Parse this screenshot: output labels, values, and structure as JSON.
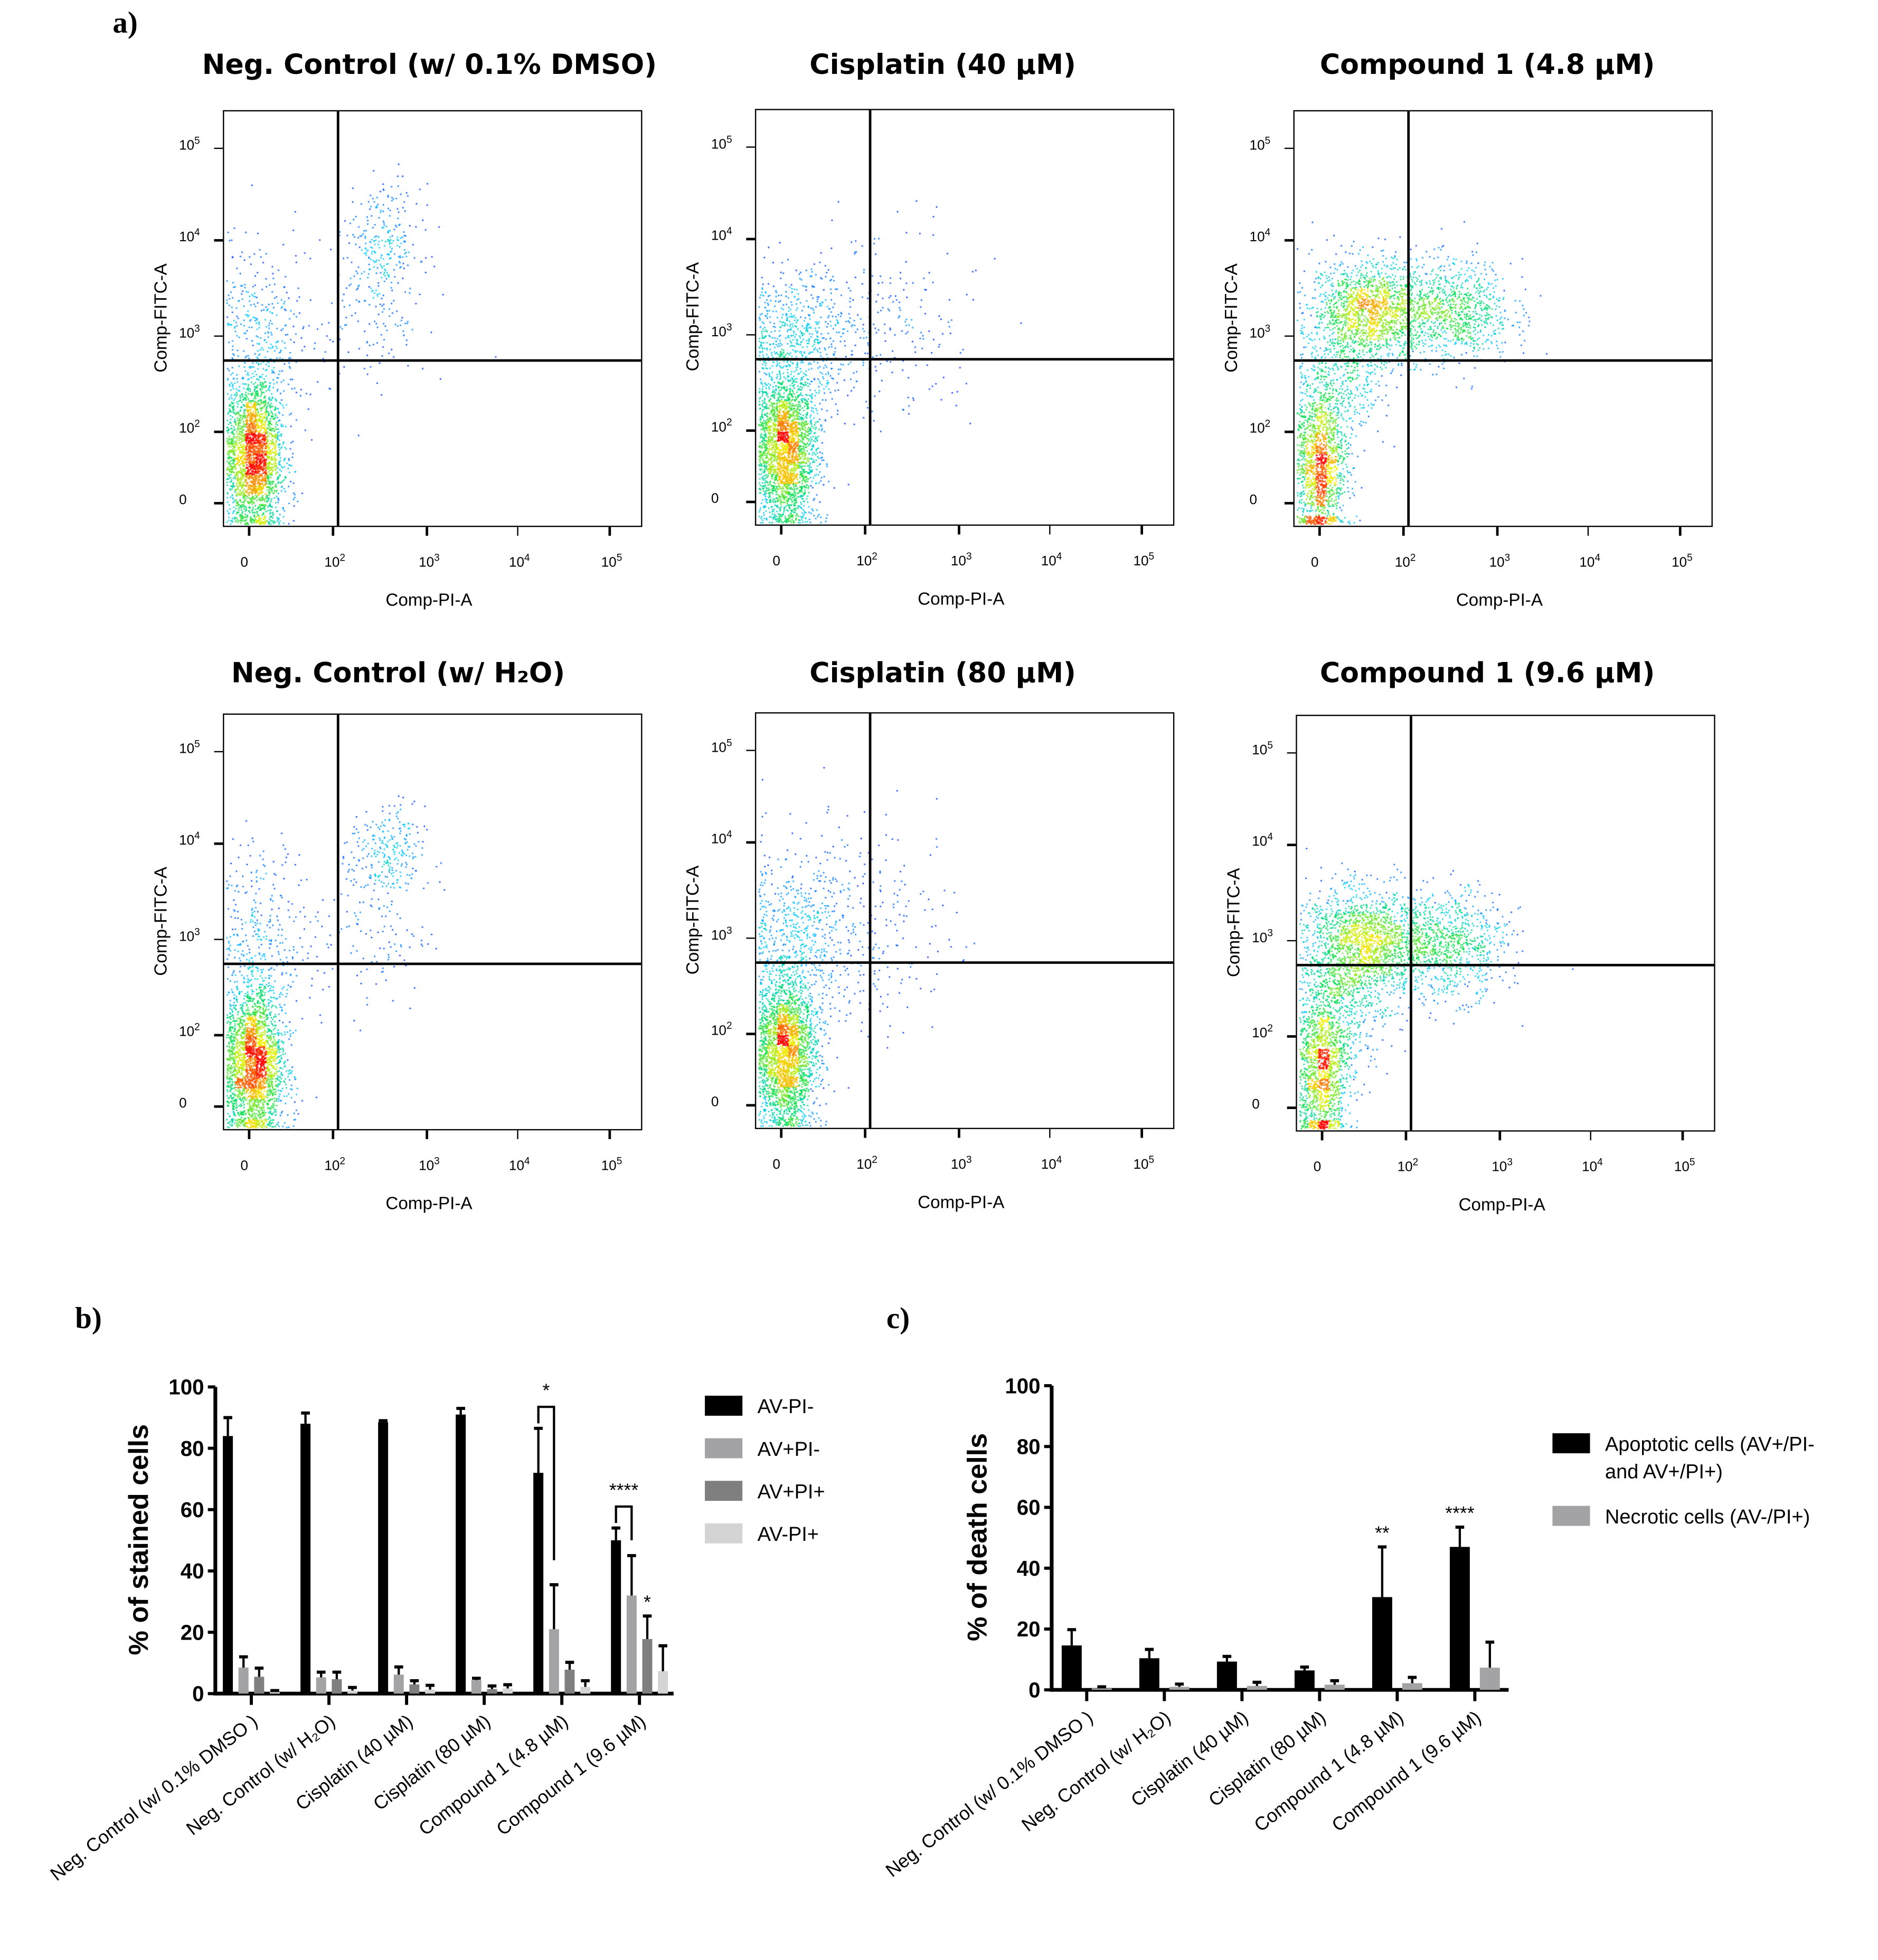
{
  "panel_labels": {
    "a": "a)",
    "b": "b)",
    "c": "c)"
  },
  "flow_plots": [
    {
      "title": "Neg. Control (w/ 0.1% DMSO)",
      "xlabel": "Comp-PI-A",
      "ylabel": "Comp-FITC-A"
    },
    {
      "title": "Cisplatin (40 µM)",
      "xlabel": "Comp-PI-A",
      "ylabel": "Comp-FITC-A"
    },
    {
      "title": "Compound 1 (4.8 µM)",
      "xlabel": "Comp-PI-A",
      "ylabel": "Comp-FITC-A"
    },
    {
      "title": "Neg. Control (w/ H₂O)",
      "xlabel": "Comp-PI-A",
      "ylabel": "Comp-FITC-A"
    },
    {
      "title": "Cisplatin (80 µM)",
      "xlabel": "Comp-PI-A",
      "ylabel": "Comp-FITC-A"
    },
    {
      "title": "Compound 1 (9.6 µM)",
      "xlabel": "Comp-PI-A",
      "ylabel": "Comp-FITC-A"
    }
  ],
  "flow_ticks": {
    "x": [
      {
        "base": "0",
        "exp": ""
      },
      {
        "base": "10",
        "exp": "2"
      },
      {
        "base": "10",
        "exp": "3"
      },
      {
        "base": "10",
        "exp": "4"
      },
      {
        "base": "10",
        "exp": "5"
      }
    ],
    "y": [
      {
        "base": "0",
        "exp": ""
      },
      {
        "base": "10",
        "exp": "2"
      },
      {
        "base": "10",
        "exp": "3"
      },
      {
        "base": "10",
        "exp": "4"
      },
      {
        "base": "10",
        "exp": "5"
      }
    ]
  },
  "chart_data": [
    {
      "type": "bar",
      "title": "",
      "ylabel": "% of stained cells",
      "xlabel": "",
      "ylim": [
        0,
        100
      ],
      "yticks": [
        "0",
        "20",
        "40",
        "60",
        "80",
        "100"
      ],
      "categories": [
        "Neg. Control (w/ 0.1% DMSO )",
        "Neg. Control (w/ H₂O)",
        "Cisplatin (40 µM)",
        "Cisplatin (80 µM)",
        "Compound 1 (4.8 µM)",
        "Compound 1 (9.6 µM)"
      ],
      "legend_position": "right",
      "series": [
        {
          "name": "AV-PI-",
          "color": "#000000",
          "values": [
            84,
            88,
            88.5,
            91,
            72,
            50
          ],
          "error_upper": [
            90,
            91.5,
            89,
            93,
            86.5,
            54
          ]
        },
        {
          "name": "AV+PI-",
          "color": "#a3a3a6",
          "values": [
            8.5,
            5.3,
            6.2,
            4.4,
            21,
            32
          ],
          "error_upper": [
            12,
            7,
            8.7,
            5,
            35.5,
            45
          ]
        },
        {
          "name": "AV+PI+",
          "color": "#7f7f7f",
          "values": [
            5.5,
            4.7,
            3,
            1.5,
            7.8,
            17.8
          ],
          "error_upper": [
            8.3,
            7,
            4.2,
            2.5,
            10.2,
            25.3
          ]
        },
        {
          "name": "AV-PI+",
          "color": "#d4d4d4",
          "values": [
            0.5,
            1,
            1.3,
            1.7,
            2.2,
            7.3
          ],
          "error_upper": [
            1,
            2,
            2.7,
            2.9,
            4.2,
            15.6
          ]
        }
      ],
      "annotations": [
        {
          "text": "*",
          "group": 4,
          "type": "bracket"
        },
        {
          "text": "****",
          "group": 5,
          "type": "bracket"
        },
        {
          "text": "*",
          "group": 5,
          "series": 2,
          "type": "star"
        }
      ]
    },
    {
      "type": "bar",
      "title": "",
      "ylabel": "% of death cells",
      "xlabel": "",
      "ylim": [
        0,
        100
      ],
      "yticks": [
        "0",
        "20",
        "40",
        "60",
        "80",
        "100"
      ],
      "categories": [
        "Neg. Control (w/ 0.1% DMSO )",
        "Neg. Control (w/ H₂O)",
        "Cisplatin (40 µM)",
        "Cisplatin (80 µM)",
        "Compound 1 (4.8 µM)",
        "Compound 1 (9.6 µM)"
      ],
      "legend_position": "right",
      "series": [
        {
          "name": "Apoptotic cells (AV+/PI- and AV+/PI+)",
          "legend_lines": [
            "Apoptotic cells (AV+/PI-",
            "and AV+/PI+)"
          ],
          "color": "#000000",
          "values": [
            14.6,
            10.4,
            9.3,
            6.4,
            30.5,
            47
          ],
          "error_upper": [
            19.8,
            13.3,
            11,
            7.5,
            47,
            53.5
          ]
        },
        {
          "name": "Necrotic cells (AV-/PI+)",
          "legend_lines": [
            "Necrotic cells (AV-/PI+)"
          ],
          "color": "#a3a3a6",
          "values": [
            0.5,
            1,
            1.3,
            1.7,
            2.2,
            7.3
          ],
          "error_upper": [
            1,
            1.9,
            2.5,
            3,
            4.1,
            15.7
          ]
        }
      ],
      "annotations": [
        {
          "text": "**",
          "group": 4,
          "series": 0,
          "type": "star"
        },
        {
          "text": "****",
          "group": 5,
          "series": 0,
          "type": "star"
        }
      ]
    }
  ]
}
